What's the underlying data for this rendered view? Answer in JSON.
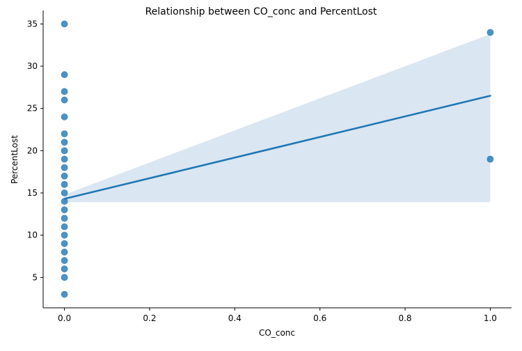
{
  "chart_data": {
    "type": "scatter",
    "title": "Relationship between CO_conc and PercentLost",
    "xlabel": "CO_conc",
    "ylabel": "PercentLost",
    "xlim": [
      -0.05,
      1.05
    ],
    "ylim": [
      1.4,
      36.6
    ],
    "x_ticks": [
      0.0,
      0.2,
      0.4,
      0.6,
      0.8,
      1.0
    ],
    "x_tick_labels": [
      "0.0",
      "0.2",
      "0.4",
      "0.6",
      "0.8",
      "1.0"
    ],
    "y_ticks": [
      5,
      10,
      15,
      20,
      25,
      30,
      35
    ],
    "y_tick_labels": [
      "5",
      "10",
      "15",
      "20",
      "25",
      "30",
      "35"
    ],
    "grid": false,
    "colors": {
      "points": "#1f77b4",
      "regression_line": "#1f77b4",
      "confidence_band": "#dae6f2"
    },
    "points": [
      {
        "x": 0,
        "y": 3
      },
      {
        "x": 0,
        "y": 5
      },
      {
        "x": 0,
        "y": 6
      },
      {
        "x": 0,
        "y": 7
      },
      {
        "x": 0,
        "y": 8
      },
      {
        "x": 0,
        "y": 9
      },
      {
        "x": 0,
        "y": 10
      },
      {
        "x": 0,
        "y": 11
      },
      {
        "x": 0,
        "y": 12
      },
      {
        "x": 0,
        "y": 13
      },
      {
        "x": 0,
        "y": 14
      },
      {
        "x": 0,
        "y": 15
      },
      {
        "x": 0,
        "y": 16
      },
      {
        "x": 0,
        "y": 17
      },
      {
        "x": 0,
        "y": 18
      },
      {
        "x": 0,
        "y": 19
      },
      {
        "x": 0,
        "y": 20
      },
      {
        "x": 0,
        "y": 21
      },
      {
        "x": 0,
        "y": 22
      },
      {
        "x": 0,
        "y": 24
      },
      {
        "x": 0,
        "y": 26
      },
      {
        "x": 0,
        "y": 27
      },
      {
        "x": 0,
        "y": 29
      },
      {
        "x": 0,
        "y": 35
      },
      {
        "x": 1,
        "y": 34
      },
      {
        "x": 1,
        "y": 19
      }
    ],
    "regression": {
      "x": [
        0,
        1
      ],
      "y": [
        14.3,
        26.5
      ]
    },
    "confidence_band": {
      "x": [
        0,
        1
      ],
      "lower": [
        13.9,
        13.9
      ],
      "upper": [
        14.8,
        33.8
      ]
    }
  }
}
